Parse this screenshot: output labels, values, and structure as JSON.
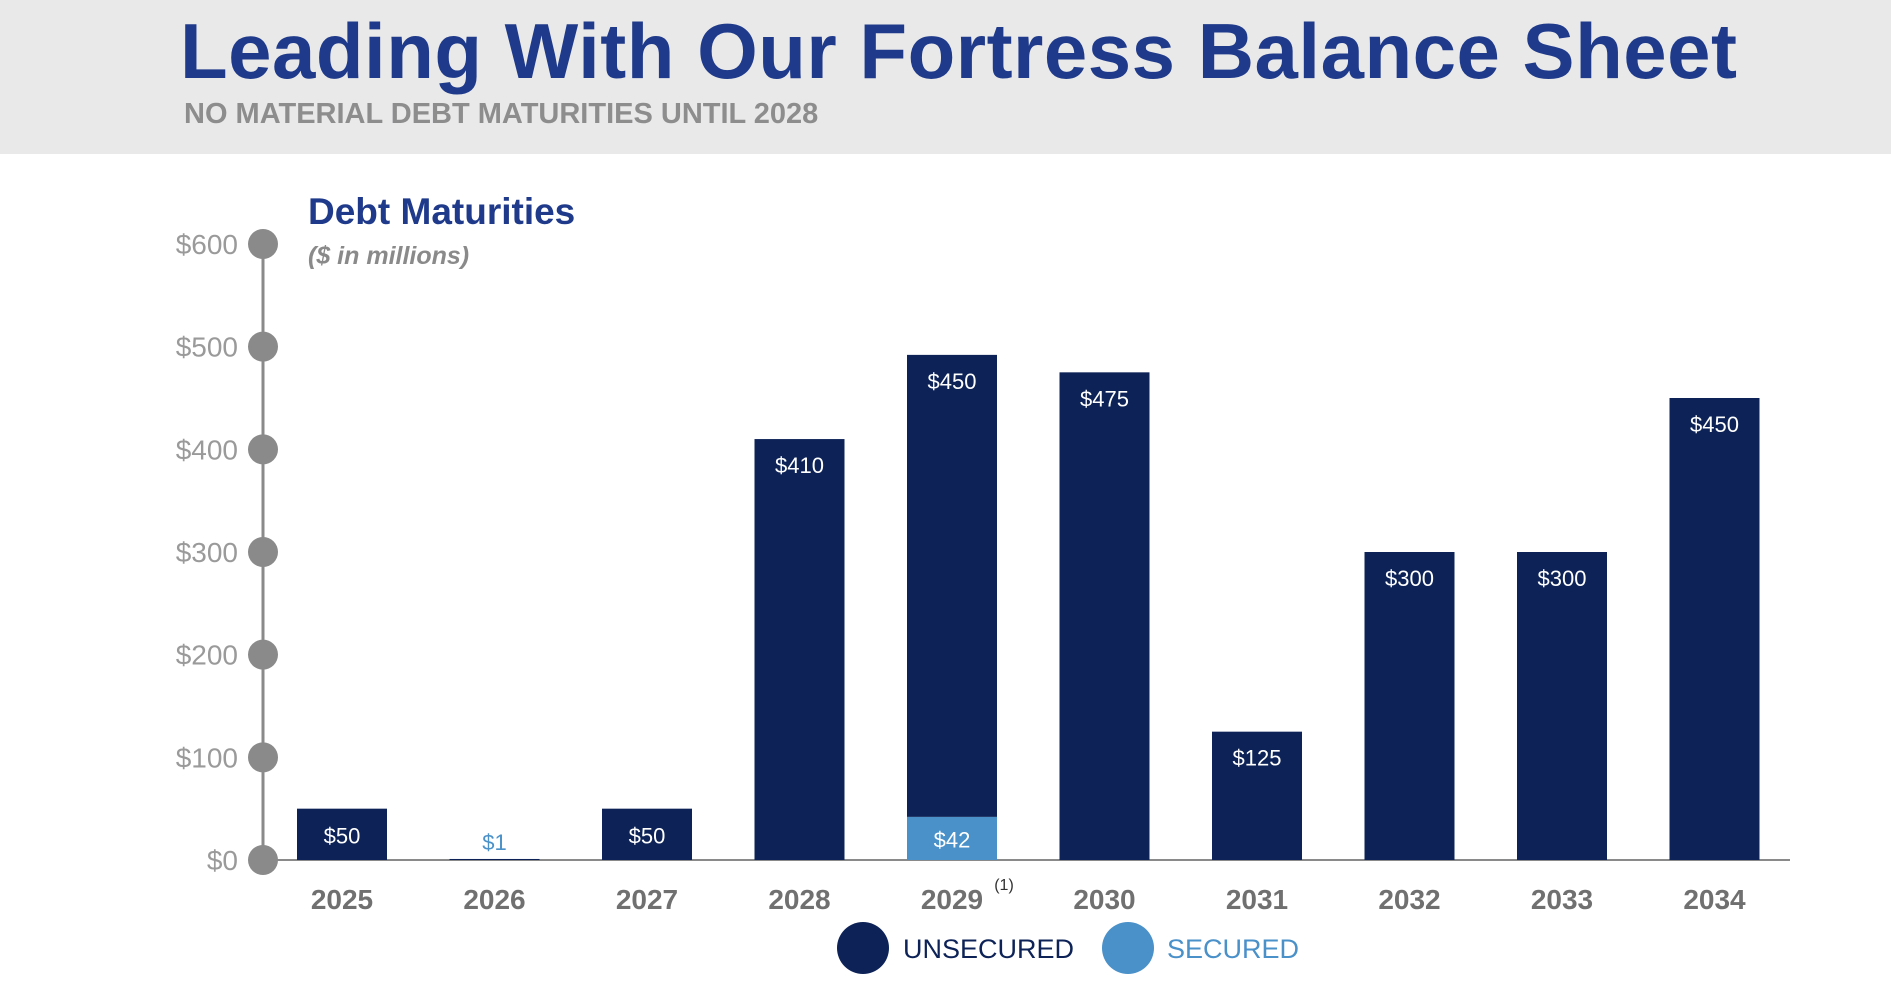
{
  "header": {
    "title": "Leading With Our Fortress Balance Sheet",
    "subtitle": "NO MATERIAL DEBT MATURITIES UNTIL 2028"
  },
  "colors": {
    "unsecured": "#0d2357",
    "secured": "#4a90c9",
    "axis": "#8a8a8a",
    "title": "#1f3a8a",
    "tick_text": "#9a9a9a",
    "year_text": "#707070"
  },
  "chart_data": {
    "type": "bar",
    "stacked": true,
    "title": "Debt Maturities",
    "subtitle": "($ in millions)",
    "categories": [
      "2025",
      "2026",
      "2027",
      "2028",
      "2029",
      "2030",
      "2031",
      "2032",
      "2033",
      "2034"
    ],
    "category_footnotes": [
      "",
      "",
      "",
      "",
      "(1)",
      "",
      "",
      "",
      "",
      ""
    ],
    "series": [
      {
        "name": "SECURED",
        "values": [
          0,
          1,
          0,
          0,
          42,
          0,
          0,
          0,
          0,
          0
        ]
      },
      {
        "name": "UNSECURED",
        "values": [
          50,
          0,
          50,
          410,
          450,
          475,
          125,
          300,
          300,
          450
        ]
      }
    ],
    "data_labels": {
      "SECURED": [
        "",
        "$1",
        "",
        "",
        "$42",
        "",
        "",
        "",
        "",
        ""
      ],
      "UNSECURED": [
        "$50",
        "",
        "$50",
        "$410",
        "$450",
        "$475",
        "$125",
        "$300",
        "$300",
        "$450"
      ]
    },
    "yticks": [
      0,
      100,
      200,
      300,
      400,
      500,
      600
    ],
    "ytick_labels": [
      "$0",
      "$100",
      "$200",
      "$300",
      "$400",
      "$500",
      "$600"
    ],
    "ylim": [
      0,
      600
    ],
    "legend_position": "bottom-center",
    "grid": false
  }
}
